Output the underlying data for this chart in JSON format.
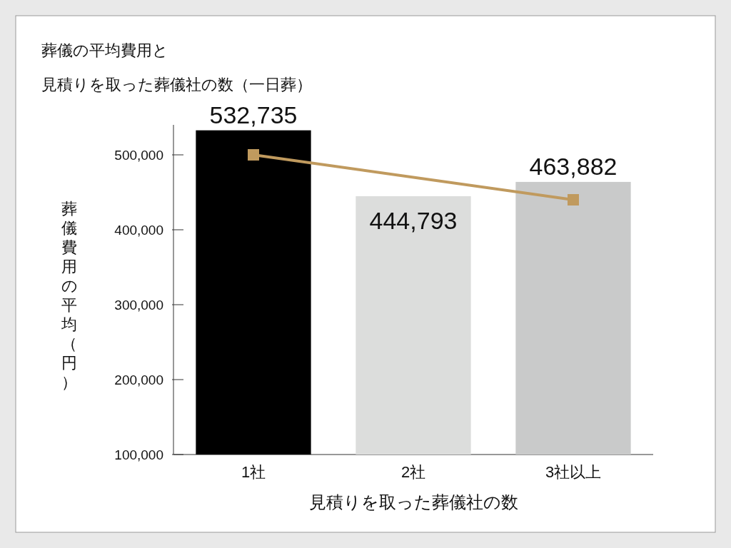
{
  "chart_data": {
    "type": "bar",
    "title": "葬儀の平均費用と",
    "subtitle": "見積りを取った葬儀社の数（一日葬）",
    "xlabel": "見積りを取った葬儀社の数",
    "ylabel": "葬儀費用の平均（円）",
    "categories": [
      "1社",
      "2社",
      "3社以上"
    ],
    "series": [
      {
        "colors": [
          "#000000",
          "#dcdddc",
          "#c9caca"
        ],
        "values": [
          532735,
          444793,
          463882
        ],
        "value_labels": [
          "532,735",
          "444,793",
          "463,882"
        ]
      },
      {
        "type": "line",
        "x": [
          "1社",
          "3社以上"
        ],
        "values": [
          500000,
          440000
        ],
        "color": "#c09a5e",
        "marker": "square"
      }
    ],
    "ylim": [
      100000,
      540000
    ],
    "yticks": [
      {
        "value": 100000,
        "label": "100,000"
      },
      {
        "value": 200000,
        "label": "200,000"
      },
      {
        "value": 300000,
        "label": "300,000"
      },
      {
        "value": 400000,
        "label": "400,000"
      },
      {
        "value": 500000,
        "label": "500,000"
      }
    ],
    "grid": false
  }
}
